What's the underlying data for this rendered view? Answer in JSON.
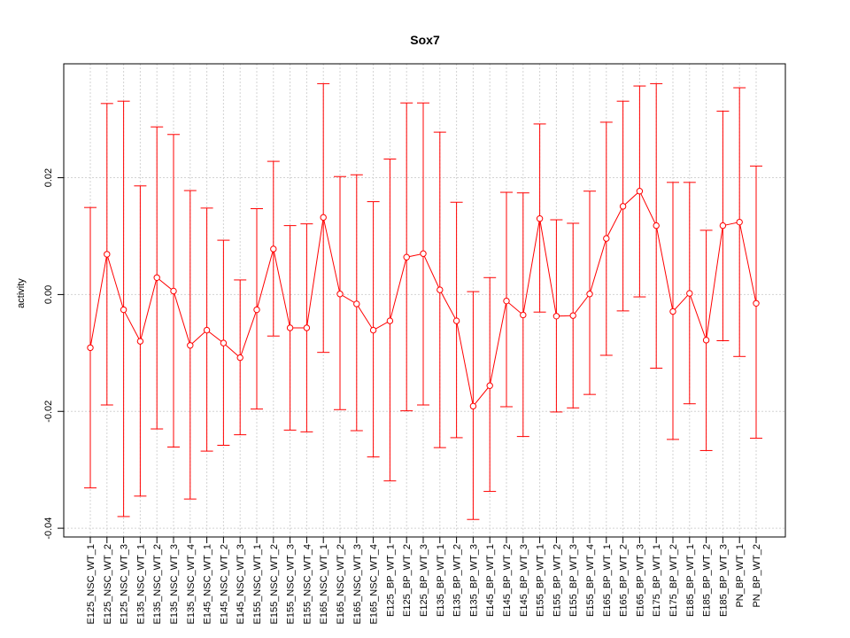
{
  "chart_data": {
    "type": "line",
    "title": "Sox7",
    "xlabel": "",
    "ylabel": "activity",
    "ylim": [
      -0.0415,
      0.0395
    ],
    "yticks": [
      -0.04,
      -0.02,
      0.0,
      0.02
    ],
    "ytick_labels": [
      "-0.04",
      "-0.02",
      "0.00",
      "0.02"
    ],
    "grid": true,
    "error_bars": true,
    "color": "#ff0000",
    "categories": [
      "E125_NSC_WT_1",
      "E125_NSC_WT_2",
      "E125_NSC_WT_3",
      "E135_NSC_WT_1",
      "E135_NSC_WT_2",
      "E135_NSC_WT_3",
      "E135_NSC_WT_4",
      "E145_NSC_WT_1",
      "E145_NSC_WT_2",
      "E145_NSC_WT_3",
      "E155_NSC_WT_1",
      "E155_NSC_WT_2",
      "E155_NSC_WT_3",
      "E155_NSC_WT_4",
      "E165_NSC_WT_1",
      "E165_NSC_WT_2",
      "E165_NSC_WT_3",
      "E165_NSC_WT_4",
      "E125_BP_WT_1",
      "E125_BP_WT_2",
      "E125_BP_WT_3",
      "E135_BP_WT_1",
      "E135_BP_WT_2",
      "E135_BP_WT_3",
      "E145_BP_WT_1",
      "E145_BP_WT_2",
      "E145_BP_WT_3",
      "E155_BP_WT_1",
      "E155_BP_WT_2",
      "E155_BP_WT_3",
      "E155_BP_WT_4",
      "E165_BP_WT_1",
      "E165_BP_WT_2",
      "E165_BP_WT_3",
      "E175_BP_WT_1",
      "E175_BP_WT_2",
      "E185_BP_WT_1",
      "E185_BP_WT_2",
      "E185_BP_WT_3",
      "PN_BP_WT_1",
      "PN_BP_WT_2"
    ],
    "values": [
      -0.0091,
      0.0069,
      -0.0026,
      -0.008,
      0.0029,
      0.0006,
      -0.0087,
      -0.0061,
      -0.0083,
      -0.0108,
      -0.0026,
      0.0078,
      -0.0057,
      -0.0057,
      0.0132,
      0.0001,
      -0.0016,
      -0.0061,
      -0.0045,
      0.0064,
      0.007,
      0.0008,
      -0.0045,
      -0.0191,
      -0.0156,
      -0.0011,
      -0.0035,
      0.013,
      -0.0037,
      -0.0036,
      0.0001,
      0.0096,
      0.0151,
      0.0177,
      0.0118,
      -0.0029,
      0.0002,
      -0.0078,
      0.0118,
      0.0124,
      -0.0015
    ],
    "upper": [
      0.0149,
      0.0327,
      0.0331,
      0.0186,
      0.0287,
      0.0274,
      0.0178,
      0.0148,
      0.0093,
      0.0025,
      0.0147,
      0.0228,
      0.0118,
      0.0121,
      0.0361,
      0.0202,
      0.0205,
      0.0159,
      0.0232,
      0.0328,
      0.0328,
      0.0278,
      0.0158,
      0.0005,
      0.0029,
      0.0175,
      0.0174,
      0.0292,
      0.0128,
      0.0122,
      0.0177,
      0.0295,
      0.0331,
      0.0357,
      0.0361,
      0.0192,
      0.0192,
      0.011,
      0.0314,
      0.0354,
      0.022
    ],
    "lower": [
      -0.0331,
      -0.0189,
      -0.038,
      -0.0345,
      -0.023,
      -0.0261,
      -0.035,
      -0.0268,
      -0.0258,
      -0.024,
      -0.0196,
      -0.0071,
      -0.0232,
      -0.0235,
      -0.0099,
      -0.0197,
      -0.0233,
      -0.0278,
      -0.0319,
      -0.0199,
      -0.0189,
      -0.0262,
      -0.0245,
      -0.0385,
      -0.0337,
      -0.0192,
      -0.0243,
      -0.003,
      -0.0201,
      -0.0194,
      -0.0171,
      -0.0104,
      -0.0028,
      -0.0004,
      -0.0126,
      -0.0248,
      -0.0187,
      -0.0267,
      -0.0079,
      -0.0106,
      -0.0246
    ]
  }
}
